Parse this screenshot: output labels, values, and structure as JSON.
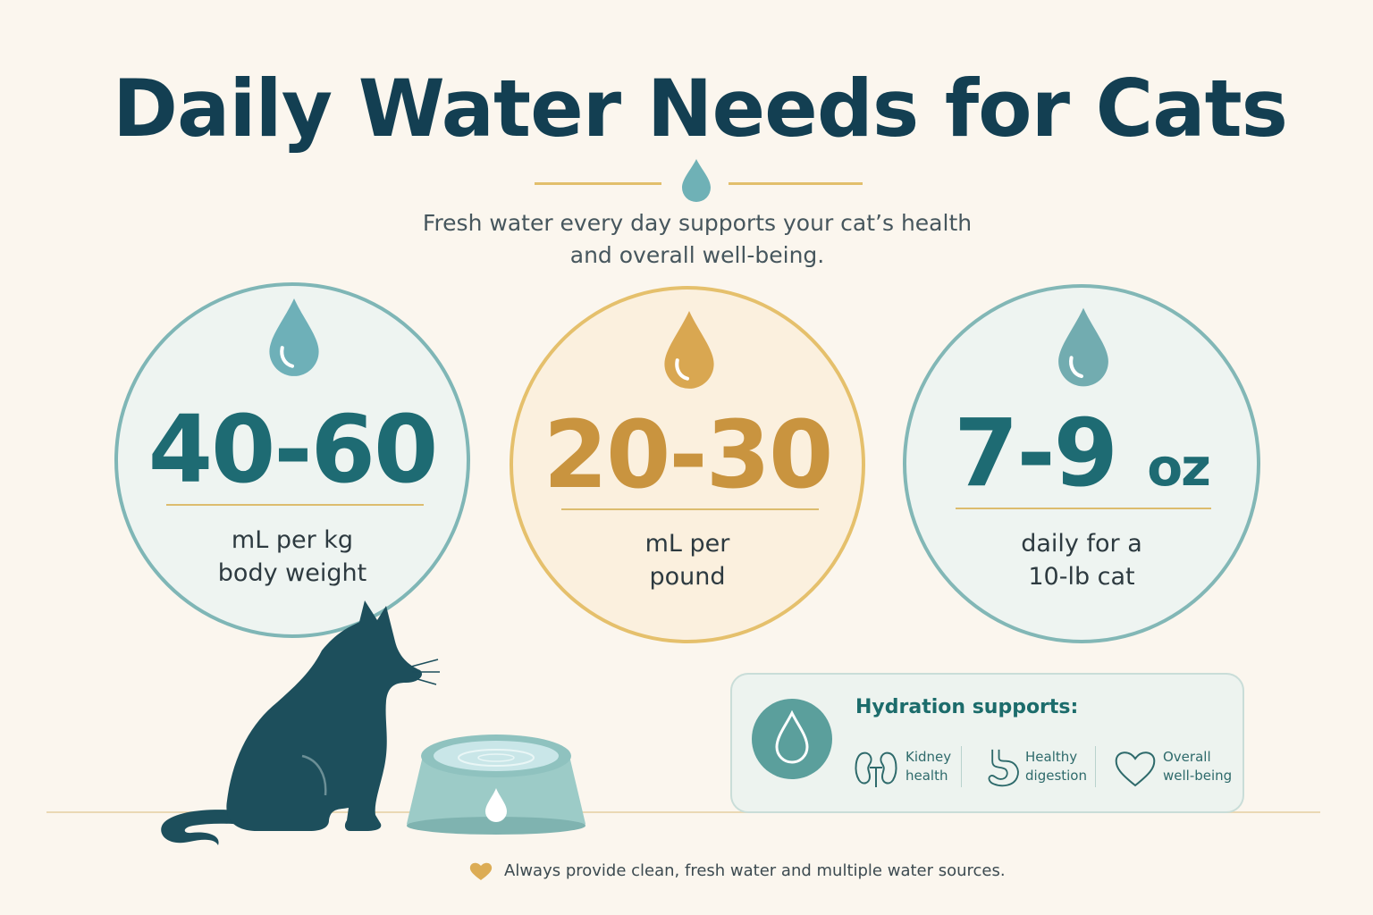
{
  "header": {
    "title": "Daily Water Needs for Cats",
    "subtitle_line1": "Fresh water every day supports your cat’s health",
    "subtitle_line2": "and overall well-being."
  },
  "stats": [
    {
      "value": "40-60",
      "caption_line1": "mL per kg",
      "caption_line2": "body weight",
      "icon": "water-drop-icon"
    },
    {
      "value": "20-30",
      "caption_line1": "mL per",
      "caption_line2": "pound",
      "icon": "water-drop-icon"
    },
    {
      "value_main": "7-9",
      "value_unit": "oz",
      "caption_line1": "daily for a",
      "caption_line2": "10-lb cat",
      "icon": "water-drop-icon"
    }
  ],
  "hydration_card": {
    "heading": "Hydration supports:",
    "benefits": [
      {
        "label": "Kidney\nhealth",
        "icon": "kidney-icon"
      },
      {
        "label": "Healthy\ndigestion",
        "icon": "stomach-icon"
      },
      {
        "label": "Overall\nwell-being",
        "icon": "heart-icon"
      }
    ]
  },
  "footnote": {
    "text": "Always provide clean, fresh water and multiple water sources.",
    "icon": "heart-icon"
  },
  "colors": {
    "background": "#fbf6ee",
    "title": "#133f52",
    "teal": "#1e6b73",
    "gold": "#c9943f",
    "accent_line": "#e2bf6c"
  }
}
